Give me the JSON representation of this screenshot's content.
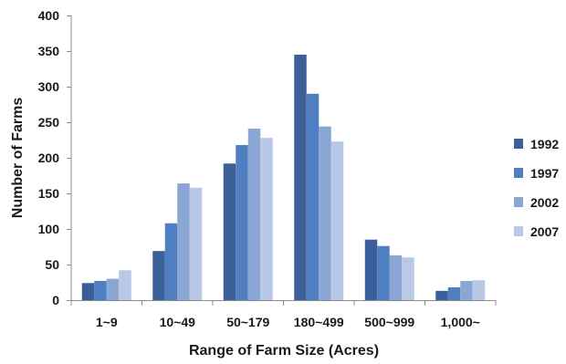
{
  "chart_data": {
    "type": "bar",
    "title": "",
    "xlabel": "Range of Farm Size (Acres)",
    "ylabel": "Number of Farms",
    "ylim": [
      0,
      400
    ],
    "yticks": [
      0,
      50,
      100,
      150,
      200,
      250,
      300,
      350,
      400
    ],
    "grid": false,
    "legend_position": "right",
    "categories": [
      "1~9",
      "10~49",
      "50~179",
      "180~499",
      "500~999",
      "1,000~"
    ],
    "series": [
      {
        "name": "1992",
        "color": "#3b5f99",
        "values": [
          24,
          69,
          192,
          345,
          85,
          13
        ]
      },
      {
        "name": "1997",
        "color": "#4f7fc0",
        "values": [
          27,
          108,
          218,
          290,
          76,
          18
        ]
      },
      {
        "name": "2002",
        "color": "#8aa6d4",
        "values": [
          30,
          164,
          241,
          244,
          63,
          27
        ]
      },
      {
        "name": "2007",
        "color": "#b9c8e6",
        "values": [
          42,
          158,
          228,
          223,
          60,
          28
        ]
      }
    ]
  }
}
